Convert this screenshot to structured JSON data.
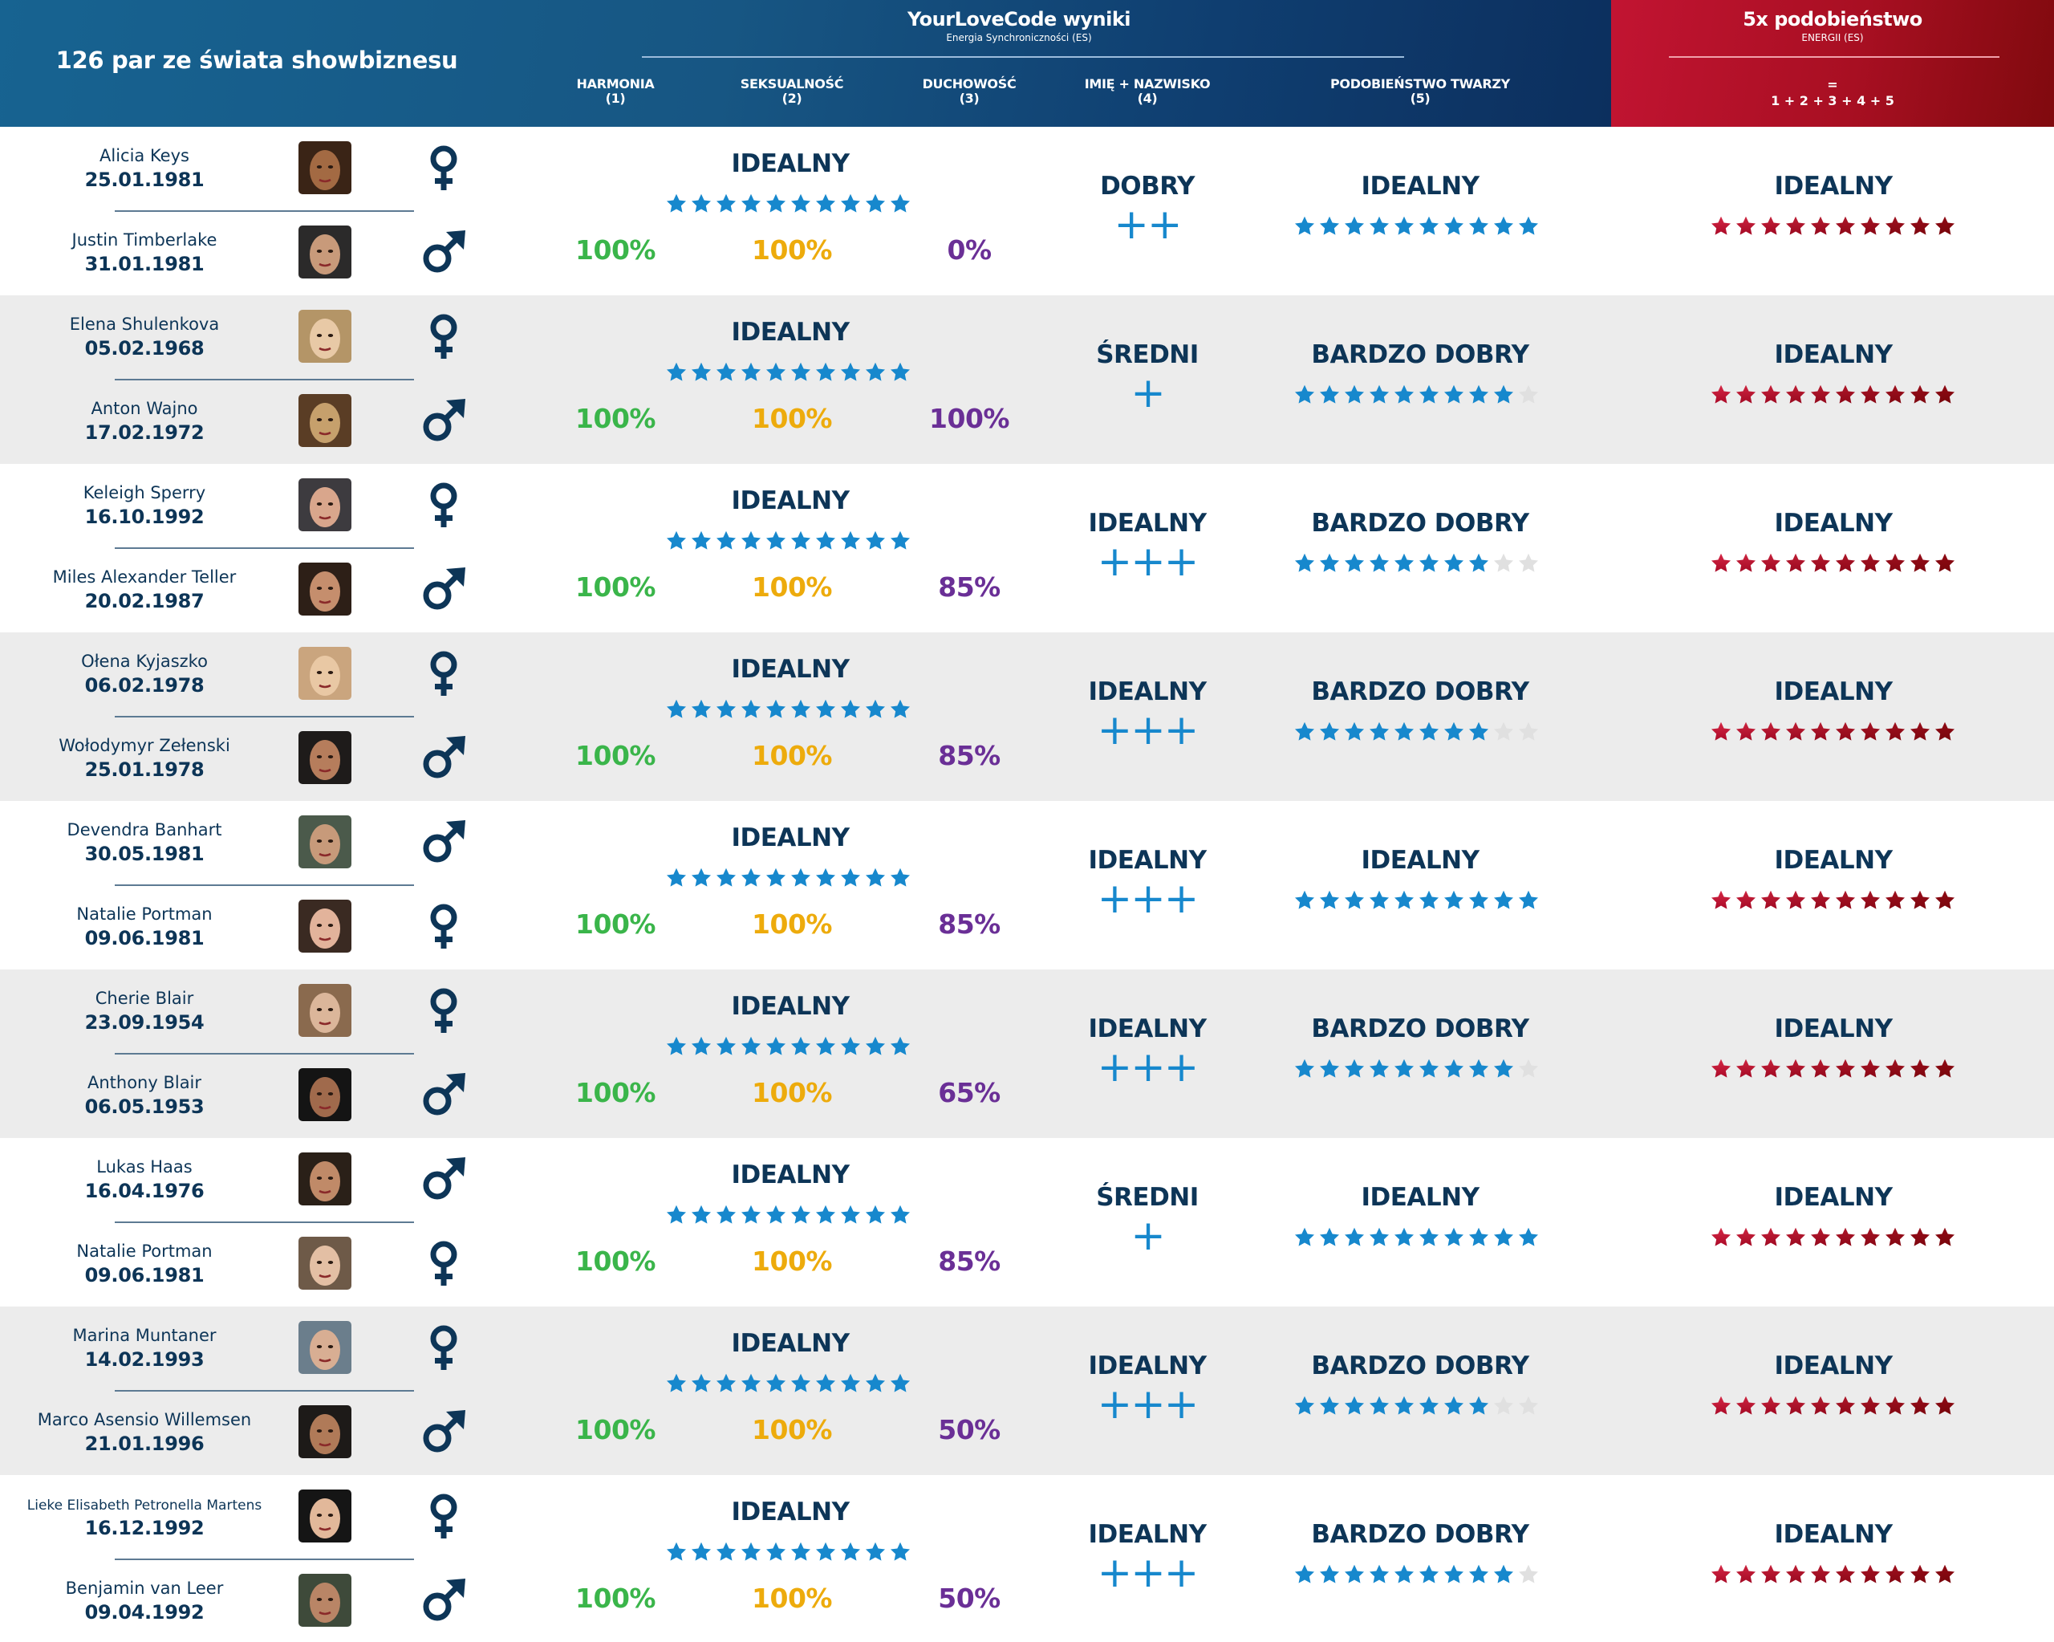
{
  "header": {
    "title": "126 par ze świata showbiznesu",
    "results_title": "YourLoveCode wyniki",
    "results_subtitle": "Energia Synchroniczności (ES)",
    "columns": [
      {
        "label": "HARMONIA",
        "index": "(1)"
      },
      {
        "label": "SEKSUALNOŚĆ",
        "index": "(2)"
      },
      {
        "label": "DUCHOWOŚĆ",
        "index": "(3)"
      },
      {
        "label": "IMIĘ + NAZWISKO",
        "index": "(4)"
      },
      {
        "label": "PODOBIEŃSTWO TWARZY",
        "index": "(5)"
      }
    ],
    "total_title": "5x podobieństwo",
    "total_subtitle": "ENERGII (ES)",
    "total_equals": "=",
    "total_formula": "1 + 2 + 3 + 4 + 5"
  },
  "colors": {
    "header_blue": "#175683",
    "header_red": "#b0101f",
    "text_navy": "#0d3557",
    "star_blue": "#1788cd",
    "star_empty": "#e0e0e0",
    "star_red": "#c21432",
    "harmony_green": "#3ab54a",
    "sexuality_orange": "#edab0c",
    "spirituality_purple": "#6a2f96",
    "row_alt": "#ececec"
  },
  "pairs": [
    {
      "person1": {
        "name": "Alicia Keys",
        "birthdate": "25.01.1981",
        "gender": "female"
      },
      "person2": {
        "name": "Justin Timberlake",
        "birthdate": "31.01.1981",
        "gender": "male"
      },
      "es_label": "IDEALNY",
      "es_stars": 10,
      "harmony": "100%",
      "sexuality": "100%",
      "spirituality": "0%",
      "name_label": "DOBRY",
      "name_pluses": "++",
      "face_label": "IDEALNY",
      "face_stars": 10,
      "total_label": "IDEALNY",
      "total_stars": 10
    },
    {
      "person1": {
        "name": "Elena Shulenkova",
        "birthdate": "05.02.1968",
        "gender": "female"
      },
      "person2": {
        "name": "Anton Wajno",
        "birthdate": "17.02.1972",
        "gender": "male"
      },
      "es_label": "IDEALNY",
      "es_stars": 10,
      "harmony": "100%",
      "sexuality": "100%",
      "spirituality": "100%",
      "name_label": "ŚREDNI",
      "name_pluses": "+",
      "face_label": "BARDZO DOBRY",
      "face_stars": 9,
      "total_label": "IDEALNY",
      "total_stars": 10
    },
    {
      "person1": {
        "name": "Keleigh Sperry",
        "birthdate": "16.10.1992",
        "gender": "female"
      },
      "person2": {
        "name": "Miles Alexander Teller",
        "birthdate": "20.02.1987",
        "gender": "male"
      },
      "es_label": "IDEALNY",
      "es_stars": 10,
      "harmony": "100%",
      "sexuality": "100%",
      "spirituality": "85%",
      "name_label": "IDEALNY",
      "name_pluses": "+++",
      "face_label": "BARDZO DOBRY",
      "face_stars": 8,
      "total_label": "IDEALNY",
      "total_stars": 10
    },
    {
      "person1": {
        "name": "Ołena Kyjaszko",
        "birthdate": "06.02.1978",
        "gender": "female"
      },
      "person2": {
        "name": "Wołodymyr Zełenski",
        "birthdate": "25.01.1978",
        "gender": "male"
      },
      "es_label": "IDEALNY",
      "es_stars": 10,
      "harmony": "100%",
      "sexuality": "100%",
      "spirituality": "85%",
      "name_label": "IDEALNY",
      "name_pluses": "+++",
      "face_label": "BARDZO DOBRY",
      "face_stars": 8,
      "total_label": "IDEALNY",
      "total_stars": 10
    },
    {
      "person1": {
        "name": "Devendra Banhart",
        "birthdate": "30.05.1981",
        "gender": "male"
      },
      "person2": {
        "name": "Natalie Portman",
        "birthdate": "09.06.1981",
        "gender": "female"
      },
      "es_label": "IDEALNY",
      "es_stars": 10,
      "harmony": "100%",
      "sexuality": "100%",
      "spirituality": "85%",
      "name_label": "IDEALNY",
      "name_pluses": "+++",
      "face_label": "IDEALNY",
      "face_stars": 10,
      "total_label": "IDEALNY",
      "total_stars": 10
    },
    {
      "person1": {
        "name": "Cherie Blair",
        "birthdate": "23.09.1954",
        "gender": "female"
      },
      "person2": {
        "name": "Anthony Blair",
        "birthdate": "06.05.1953",
        "gender": "male"
      },
      "es_label": "IDEALNY",
      "es_stars": 10,
      "harmony": "100%",
      "sexuality": "100%",
      "spirituality": "65%",
      "name_label": "IDEALNY",
      "name_pluses": "+++",
      "face_label": "BARDZO DOBRY",
      "face_stars": 9,
      "total_label": "IDEALNY",
      "total_stars": 10
    },
    {
      "person1": {
        "name": "Lukas Haas",
        "birthdate": "16.04.1976",
        "gender": "male"
      },
      "person2": {
        "name": "Natalie Portman",
        "birthdate": "09.06.1981",
        "gender": "female"
      },
      "es_label": "IDEALNY",
      "es_stars": 10,
      "harmony": "100%",
      "sexuality": "100%",
      "spirituality": "85%",
      "name_label": "ŚREDNI",
      "name_pluses": "+",
      "face_label": "IDEALNY",
      "face_stars": 10,
      "total_label": "IDEALNY",
      "total_stars": 10
    },
    {
      "person1": {
        "name": "Marina Muntaner",
        "birthdate": "14.02.1993",
        "gender": "female"
      },
      "person2": {
        "name": "Marco Asensio Willemsen",
        "birthdate": "21.01.1996",
        "gender": "male"
      },
      "es_label": "IDEALNY",
      "es_stars": 10,
      "harmony": "100%",
      "sexuality": "100%",
      "spirituality": "50%",
      "name_label": "IDEALNY",
      "name_pluses": "+++",
      "face_label": "BARDZO DOBRY",
      "face_stars": 8,
      "total_label": "IDEALNY",
      "total_stars": 10
    },
    {
      "person1": {
        "name": "Lieke Elisabeth Petronella Martens",
        "birthdate": "16.12.1992",
        "gender": "female"
      },
      "person2": {
        "name": "Benjamin van Leer",
        "birthdate": "09.04.1992",
        "gender": "male"
      },
      "es_label": "IDEALNY",
      "es_stars": 10,
      "harmony": "100%",
      "sexuality": "100%",
      "spirituality": "50%",
      "name_label": "IDEALNY",
      "name_pluses": "+++",
      "face_label": "BARDZO DOBRY",
      "face_stars": 9,
      "total_label": "IDEALNY",
      "total_stars": 10
    }
  ]
}
